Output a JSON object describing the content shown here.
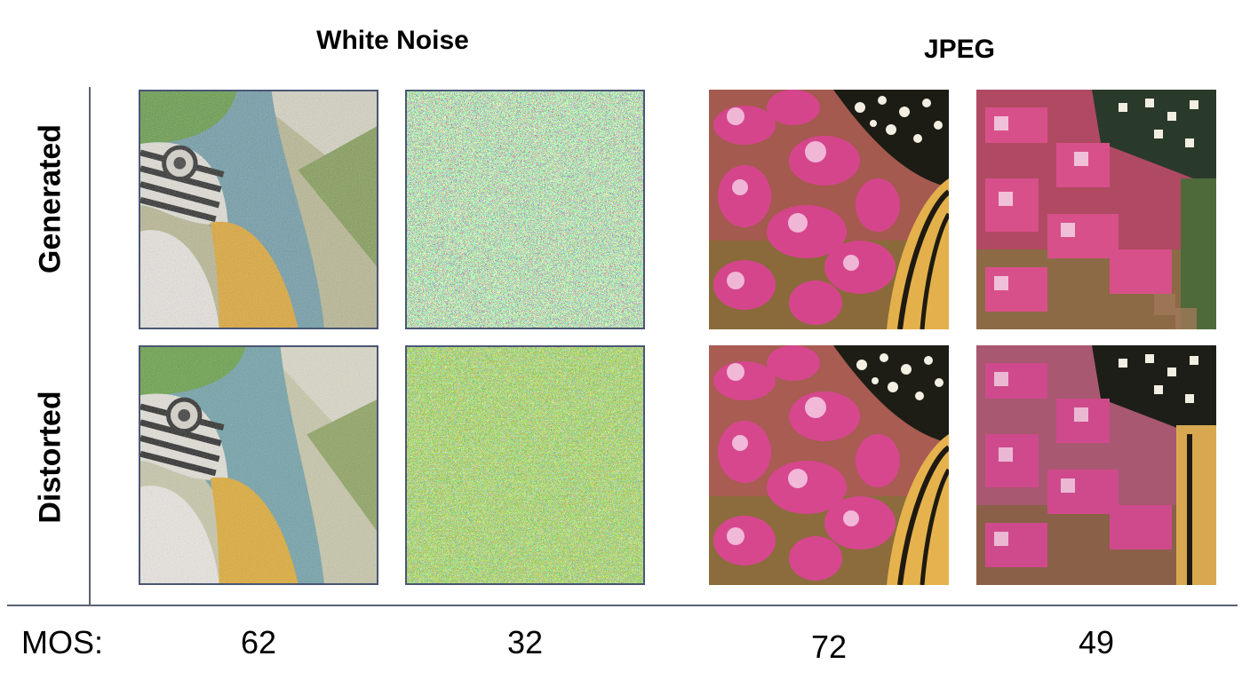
{
  "columns": {
    "white_noise": "White Noise",
    "jpeg": "JPEG"
  },
  "rows": {
    "generated": "Generated",
    "distorted": "Distorted"
  },
  "mos": {
    "label": "MOS:",
    "values": [
      "62",
      "32",
      "72",
      "49"
    ]
  },
  "images": [
    "parrot-mild-white-noise-generated",
    "heavy-white-noise-generated",
    "butterfly-flowers-jpeg-mild-generated",
    "butterfly-flowers-jpeg-heavy-generated",
    "parrot-mild-white-noise-distorted",
    "heavy-white-noise-distorted",
    "butterfly-flowers-jpeg-mild-distorted",
    "butterfly-flowers-jpeg-heavy-distorted"
  ]
}
